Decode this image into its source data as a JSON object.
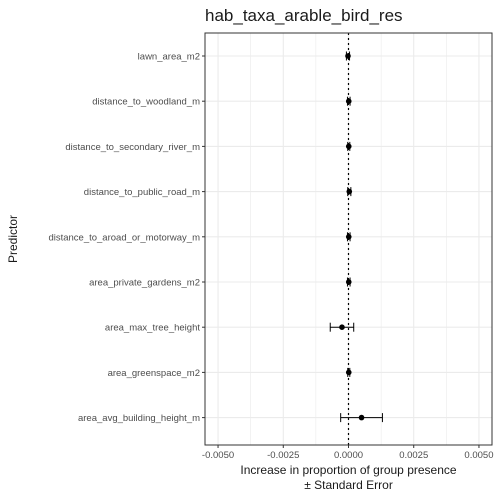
{
  "chart_data": {
    "type": "scatter",
    "title": "hab_taxa_arable_bird_res",
    "xlabel": "Increase in proportion of group presence",
    "xlabel_line2": "± Standard Error",
    "ylabel": "Predictor",
    "xlim": [
      -0.0055,
      0.0055
    ],
    "xticks": [
      -0.005,
      -0.0025,
      0.0,
      0.0025,
      0.005
    ],
    "xtick_labels": [
      "-0.0050",
      "-0.0025",
      "0.0000",
      "0.0025",
      "0.0050"
    ],
    "reference_line_x": 0.0,
    "grid": true,
    "categories": [
      "lawn_area_m2",
      "distance_to_woodland_m",
      "distance_to_secondary_river_m",
      "distance_to_public_road_m",
      "distance_to_aroad_or_motorway_m",
      "area_private_gardens_m2",
      "area_max_tree_height",
      "area_greenspace_m2",
      "area_avg_building_height_m"
    ],
    "estimates": [
      -2e-05,
      1e-05,
      1e-05,
      3e-05,
      1e-05,
      1e-05,
      -0.00025,
      1e-05,
      0.0005
    ],
    "std_errors": [
      6e-05,
      5e-05,
      4e-05,
      6e-05,
      5e-05,
      5e-05,
      0.00045,
      4e-05,
      0.0008
    ],
    "colors": {
      "point": "#000000",
      "grid": "#ebebeb",
      "panel_border": "#333333",
      "ref_line": "#000000"
    }
  }
}
